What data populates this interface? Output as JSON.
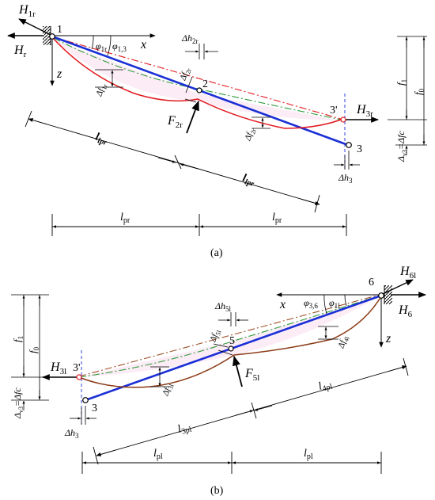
{
  "panel_a": {
    "caption": "(a)",
    "node_1": "1",
    "node_2": "2",
    "node_3": "3",
    "node_3p": "3'",
    "H1r": "H",
    "H1r_sub": "1r",
    "Hr": "H",
    "Hr_sub": "r",
    "H3r": "H",
    "H3r_sub": "3r",
    "x": "x",
    "z": "z",
    "phi1r": "φ",
    "phi1r_sub": "1r",
    "phi13": "φ",
    "phi13_sub": "1,3",
    "dh2r": "Δh",
    "dh2r_sub": "2r",
    "df2r_top": "Δf",
    "df2r_top_sub": "2r",
    "df1r": "Δf",
    "df1r_sub": "1r",
    "F2r": "F",
    "F2r_sub": "2r",
    "df2r": "Δf",
    "df2r_sub": "2r",
    "dh3": "Δh",
    "dh3_sub": "3",
    "lpr_bold_1": "l",
    "lpr_bold_1_sub": "lpr",
    "lpr_bold_2": "l",
    "lpr_bold_2_sub": "lpr",
    "lpr_1": "l",
    "lpr_1_sub": "pr",
    "lpr_2": "l",
    "lpr_2_sub": "pr",
    "f1": "f",
    "f1_sub": "1",
    "f0": "f",
    "f0_sub": "0",
    "dvs3": "Δ",
    "dvs3_sub": "v3",
    "dvs3_rest": "=Δfc"
  },
  "panel_b": {
    "caption": "(b)",
    "node_6": "6",
    "node_5": "5",
    "node_3": "3",
    "node_3p": "3'",
    "H6l": "H",
    "H6l_sub": "6l",
    "H6": "H",
    "H6_sub": "6",
    "H3l": "H",
    "H3l_sub": "3l",
    "x": "x",
    "z": "z",
    "phi36": "φ",
    "phi36_sub": "3,6",
    "phi1l": "φ",
    "phi1l_sub": "1l",
    "dh5l": "Δh",
    "dh5l_sub": "5l",
    "df5l_top": "Δf",
    "df5l_top_sub": "5l",
    "df4l": "Δf",
    "df4l_sub": "4l",
    "F5l": "F",
    "F5l_sub": "5l",
    "df3l": "Δf",
    "df3l_sub": "3l",
    "dh3": "Δh",
    "dh3_sub": "3",
    "l4pl": "l",
    "l4pl_sub": "4pl",
    "l3pl": "l",
    "l3pl_sub": "3pl",
    "lpl_1": "l",
    "lpl_1_sub": "pl",
    "lpl_2": "l",
    "lpl_2_sub": "pl",
    "f1": "f",
    "f1_sub": "1",
    "f0": "f",
    "f0_sub": "0",
    "dvs3": "Δ",
    "dvs3_sub": "v3",
    "dvs3_rest": "=Δfc"
  },
  "colors": {
    "chord": "#1a2fd6",
    "cable_a": "#e2181d",
    "cable_b": "#8b3a16",
    "dashdot_red": "#e2181d",
    "dashdot_brown": "#a0522d",
    "dashdot_green": "#2e9c3a",
    "dim_line": "#000000",
    "node_fill": "#ffffff",
    "shade": "#f7c9e4"
  }
}
